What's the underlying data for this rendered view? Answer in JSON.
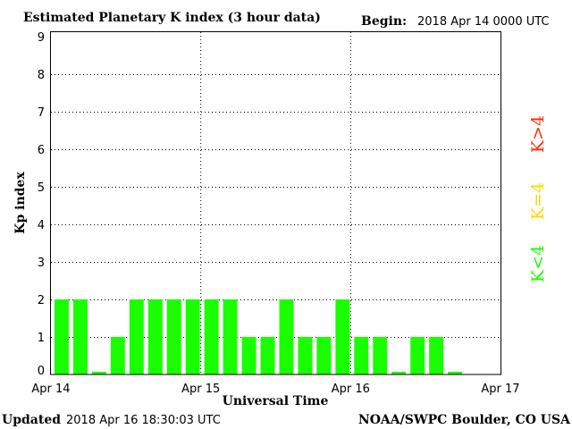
{
  "chart_data": {
    "type": "bar",
    "title": "Estimated Planetary K index (3 hour data)",
    "begin_label": "Begin:",
    "begin_value": "2018 Apr 14 0000 UTC",
    "xlabel": "Universal Time",
    "ylabel": "Kp index",
    "ylim": [
      0,
      9
    ],
    "yticks": [
      "0",
      "1",
      "2",
      "3",
      "4",
      "5",
      "6",
      "7",
      "8",
      "9"
    ],
    "xticks": [
      "Apr 14",
      "Apr 15",
      "Apr 16",
      "Apr 17"
    ],
    "interval_hours": 3,
    "values": [
      2,
      2,
      0,
      1,
      2,
      2,
      2,
      2,
      2,
      2,
      1,
      1,
      2,
      1,
      1,
      2,
      1,
      1,
      0,
      1,
      1,
      0
    ],
    "bar_color": "#19ff00",
    "grid": true,
    "legend": [
      {
        "label": "K<4",
        "color": "#19ff00"
      },
      {
        "label": "K=4",
        "color": "#ffd700"
      },
      {
        "label": "K>4",
        "color": "#ff2a00"
      }
    ]
  },
  "footer": {
    "updated_label": "Updated",
    "updated_value": "2018 Apr 16 18:30:03 UTC",
    "source": "NOAA/SWPC Boulder, CO USA"
  }
}
